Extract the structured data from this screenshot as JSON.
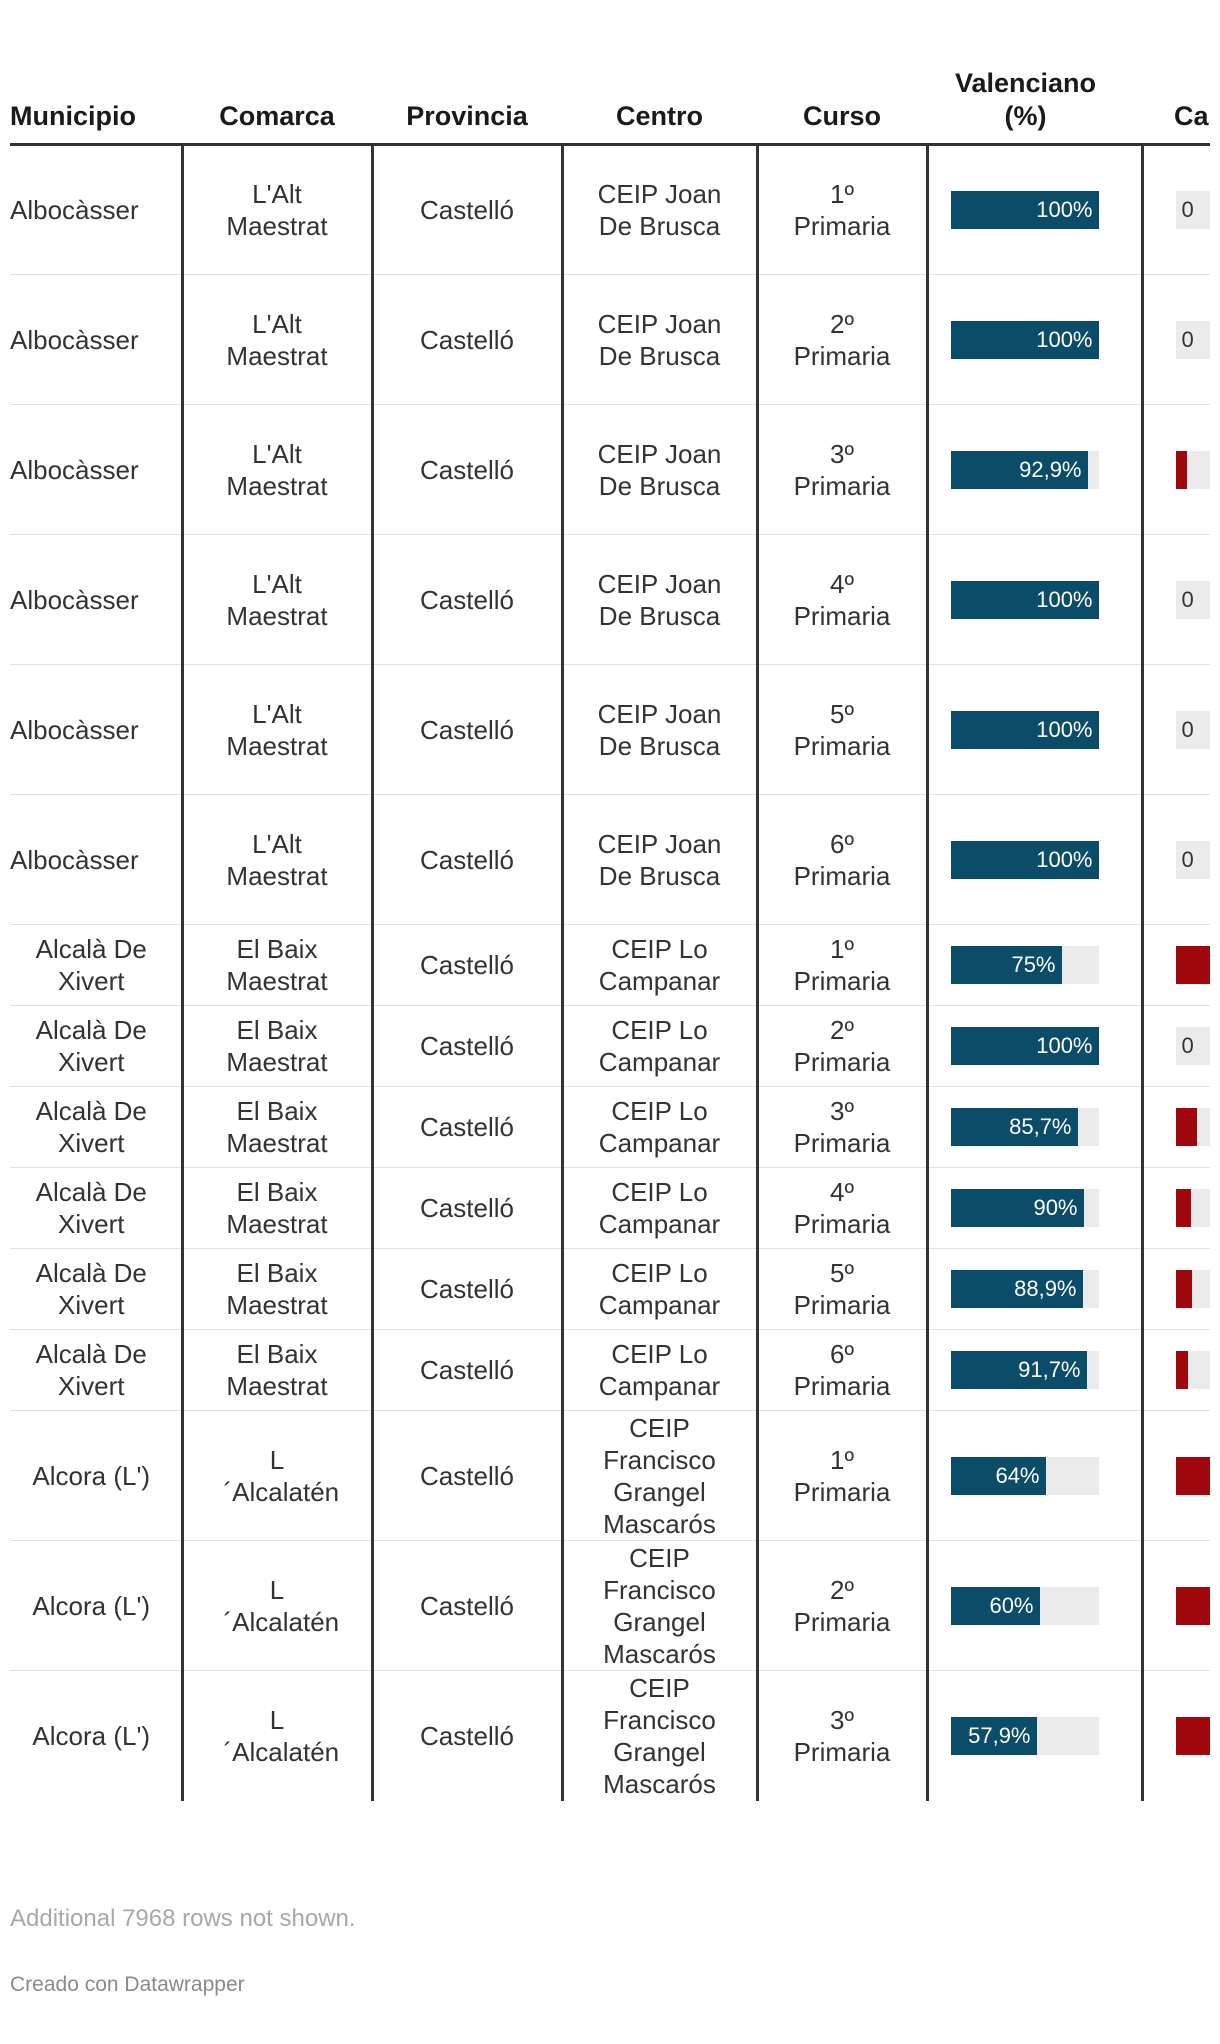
{
  "chart_data": {
    "type": "table",
    "columns": [
      "Municipio",
      "Comarca",
      "Provincia",
      "Centro",
      "Curso",
      "Valenciano (%)",
      "Castellano (%)"
    ],
    "rows": [
      {
        "municipio": "Albocàsser",
        "comarca": "L'Alt Maestrat",
        "provincia": "Castelló",
        "centro": "CEIP Joan De Brusca",
        "curso": "1º Primaria",
        "valenciano": 100,
        "valenciano_label": "100%",
        "castellano": 0,
        "castellano_label": "0"
      },
      {
        "municipio": "Albocàsser",
        "comarca": "L'Alt Maestrat",
        "provincia": "Castelló",
        "centro": "CEIP Joan De Brusca",
        "curso": "2º Primaria",
        "valenciano": 100,
        "valenciano_label": "100%",
        "castellano": 0,
        "castellano_label": "0"
      },
      {
        "municipio": "Albocàsser",
        "comarca": "L'Alt Maestrat",
        "provincia": "Castelló",
        "centro": "CEIP Joan De Brusca",
        "curso": "3º Primaria",
        "valenciano": 92.9,
        "valenciano_label": "92,9%",
        "castellano": 7.1,
        "castellano_label": ""
      },
      {
        "municipio": "Albocàsser",
        "comarca": "L'Alt Maestrat",
        "provincia": "Castelló",
        "centro": "CEIP Joan De Brusca",
        "curso": "4º Primaria",
        "valenciano": 100,
        "valenciano_label": "100%",
        "castellano": 0,
        "castellano_label": "0"
      },
      {
        "municipio": "Albocàsser",
        "comarca": "L'Alt Maestrat",
        "provincia": "Castelló",
        "centro": "CEIP Joan De Brusca",
        "curso": "5º Primaria",
        "valenciano": 100,
        "valenciano_label": "100%",
        "castellano": 0,
        "castellano_label": "0"
      },
      {
        "municipio": "Albocàsser",
        "comarca": "L'Alt Maestrat",
        "provincia": "Castelló",
        "centro": "CEIP Joan De Brusca",
        "curso": "6º Primaria",
        "valenciano": 100,
        "valenciano_label": "100%",
        "castellano": 0,
        "castellano_label": "0"
      },
      {
        "municipio": "Alcalà De Xivert",
        "comarca": "El Baix Maestrat",
        "provincia": "Castelló",
        "centro": "CEIP Lo Campanar",
        "curso": "1º Primaria",
        "valenciano": 75,
        "valenciano_label": "75%",
        "castellano": 25,
        "castellano_label": ""
      },
      {
        "municipio": "Alcalà De Xivert",
        "comarca": "El Baix Maestrat",
        "provincia": "Castelló",
        "centro": "CEIP Lo Campanar",
        "curso": "2º Primaria",
        "valenciano": 100,
        "valenciano_label": "100%",
        "castellano": 0,
        "castellano_label": "0"
      },
      {
        "municipio": "Alcalà De Xivert",
        "comarca": "El Baix Maestrat",
        "provincia": "Castelló",
        "centro": "CEIP Lo Campanar",
        "curso": "3º Primaria",
        "valenciano": 85.7,
        "valenciano_label": "85,7%",
        "castellano": 14.3,
        "castellano_label": ""
      },
      {
        "municipio": "Alcalà De Xivert",
        "comarca": "El Baix Maestrat",
        "provincia": "Castelló",
        "centro": "CEIP Lo Campanar",
        "curso": "4º Primaria",
        "valenciano": 90,
        "valenciano_label": "90%",
        "castellano": 10,
        "castellano_label": ""
      },
      {
        "municipio": "Alcalà De Xivert",
        "comarca": "El Baix Maestrat",
        "provincia": "Castelló",
        "centro": "CEIP Lo Campanar",
        "curso": "5º Primaria",
        "valenciano": 88.9,
        "valenciano_label": "88,9%",
        "castellano": 11.1,
        "castellano_label": ""
      },
      {
        "municipio": "Alcalà De Xivert",
        "comarca": "El Baix Maestrat",
        "provincia": "Castelló",
        "centro": "CEIP Lo Campanar",
        "curso": "6º Primaria",
        "valenciano": 91.7,
        "valenciano_label": "91,7%",
        "castellano": 8.3,
        "castellano_label": ""
      },
      {
        "municipio": "Alcora (L')",
        "comarca": "L ´Alcalatén",
        "provincia": "Castelló",
        "centro": "CEIP Francisco Grangel Mascarós",
        "curso": "1º Primaria",
        "valenciano": 64,
        "valenciano_label": "64%",
        "castellano": 36,
        "castellano_label": ""
      },
      {
        "municipio": "Alcora (L')",
        "comarca": "L ´Alcalatén",
        "provincia": "Castelló",
        "centro": "CEIP Francisco Grangel Mascarós",
        "curso": "2º Primaria",
        "valenciano": 60,
        "valenciano_label": "60%",
        "castellano": 40,
        "castellano_label": ""
      },
      {
        "municipio": "Alcora (L')",
        "comarca": "L ´Alcalatén",
        "provincia": "Castelló",
        "centro": "CEIP Francisco Grangel Mascarós",
        "curso": "3º Primaria",
        "valenciano": 57.9,
        "valenciano_label": "57,9%",
        "castellano": 42.1,
        "castellano_label": ""
      }
    ],
    "valenciano_color": "#0b4d69",
    "castellano_color": "#a0080d",
    "bar_track_color": "#ebebeb"
  },
  "footer": {
    "note": "Additional 7968 rows not shown.",
    "credit": "Creado con Datawrapper"
  }
}
